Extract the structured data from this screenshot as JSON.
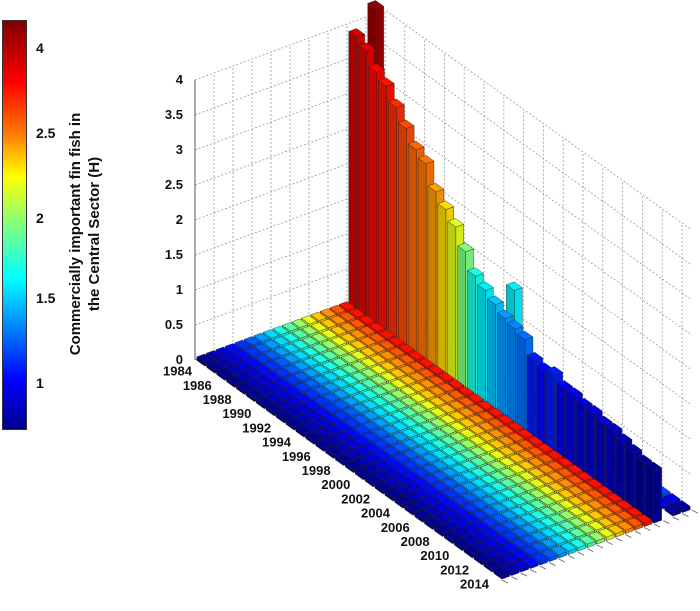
{
  "chart_data": {
    "type": "bar3d",
    "title": "",
    "colorbar_label_line1": "Commercially important fin fish in",
    "colorbar_label_line2": "the Central Sector (H)",
    "colorbar_ticks": [
      "4",
      "2.5",
      "2",
      "1.5",
      "1"
    ],
    "zlim": [
      0,
      4
    ],
    "z_ticks": [
      "0",
      "0.5",
      "1",
      "1.5",
      "2",
      "2.5",
      "3",
      "3.5",
      "4"
    ],
    "year_ticks": [
      "1984",
      "1986",
      "1988",
      "1990",
      "1992",
      "1994",
      "1996",
      "1998",
      "2000",
      "2002",
      "2004",
      "2006",
      "2008",
      "2010",
      "2012",
      "2014"
    ],
    "grid": true,
    "bars": [
      {
        "year": 1984,
        "col": 16,
        "value": 3.9
      },
      {
        "year": 1985,
        "col": 16,
        "value": 3.8
      },
      {
        "year": 1986,
        "col": 16,
        "value": 3.6
      },
      {
        "year": 1987,
        "col": 16,
        "value": 3.5
      },
      {
        "year": 1988,
        "col": 16,
        "value": 3.3
      },
      {
        "year": 1989,
        "col": 16,
        "value": 3.1
      },
      {
        "year": 1990,
        "col": 16,
        "value": 2.9
      },
      {
        "year": 1991,
        "col": 16,
        "value": 2.8
      },
      {
        "year": 1992,
        "col": 16,
        "value": 2.5
      },
      {
        "year": 1993,
        "col": 16,
        "value": 2.35
      },
      {
        "year": 1994,
        "col": 16,
        "value": 2.2
      },
      {
        "year": 1995,
        "col": 16,
        "value": 1.95
      },
      {
        "year": 1996,
        "col": 16,
        "value": 1.7
      },
      {
        "year": 1997,
        "col": 16,
        "value": 1.6
      },
      {
        "year": 1998,
        "col": 16,
        "value": 1.5
      },
      {
        "year": 1999,
        "col": 16,
        "value": 1.4
      },
      {
        "year": 2000,
        "col": 16,
        "value": 1.35
      },
      {
        "year": 2001,
        "col": 16,
        "value": 1.3
      },
      {
        "year": 2002,
        "col": 16,
        "value": 1.1
      },
      {
        "year": 2003,
        "col": 16,
        "value": 1.05
      },
      {
        "year": 2004,
        "col": 16,
        "value": 1.1
      },
      {
        "year": 2005,
        "col": 16,
        "value": 1.0
      },
      {
        "year": 2006,
        "col": 16,
        "value": 1.0
      },
      {
        "year": 2007,
        "col": 16,
        "value": 0.95
      },
      {
        "year": 2008,
        "col": 16,
        "value": 0.95
      },
      {
        "year": 2009,
        "col": 16,
        "value": 0.9
      },
      {
        "year": 2010,
        "col": 16,
        "value": 0.9
      },
      {
        "year": 2011,
        "col": 16,
        "value": 0.85
      },
      {
        "year": 2012,
        "col": 16,
        "value": 0.8
      },
      {
        "year": 2013,
        "col": 16,
        "value": 0.75
      },
      {
        "year": 2014,
        "col": 16,
        "value": 0.75
      },
      {
        "year": 1984,
        "col": 18,
        "value": 4.2
      },
      {
        "year": 1998,
        "col": 18,
        "value": 1.6
      }
    ],
    "floor_left_by_column": [
      0.75,
      0.85,
      0.95,
      1.05,
      1.15,
      1.25,
      1.4,
      1.55,
      1.7,
      1.85,
      2.0,
      2.2,
      2.4,
      2.6,
      3.0,
      3.5
    ],
    "floor_right_by_year_index": [
      4.2,
      4.2,
      4.1,
      4.1,
      4.0,
      4.0,
      3.9,
      3.8,
      3.6,
      3.4,
      3.2,
      3.0,
      3.0,
      2.8,
      2.7,
      2.6,
      2.5,
      2.4,
      2.3,
      2.2,
      2.1,
      2.0,
      1.9,
      1.8,
      1.7,
      1.6,
      1.5,
      1.4,
      1.2,
      1.0,
      0.8
    ]
  }
}
